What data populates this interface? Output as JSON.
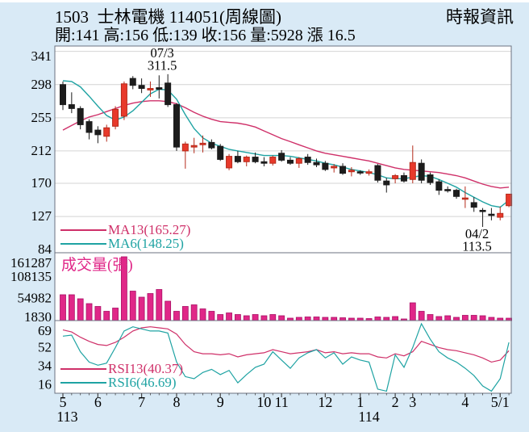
{
  "header": {
    "title": "1503  士林電機 114051(周線圖)",
    "source": "時報資訊",
    "info": "開:141 高:156 低:139 收:156 量:5928 漲 16.5"
  },
  "colors": {
    "background": "#d9eaf6",
    "plot_bg": "#ffffff",
    "up": "#e8392b",
    "up_border": "#b52a1a",
    "down": "#1c1c1c",
    "ma13": "#cf3069",
    "ma6": "#1fa3a3",
    "volume_bar": "#e02788",
    "volume_border": "#aa1166",
    "grid": "#d4d4d4",
    "axis": "#6b7280",
    "tick": "#444444",
    "text": "#000000"
  },
  "main_chart": {
    "y_ticks": [
      341,
      298,
      255,
      212,
      170,
      127,
      84
    ],
    "legend": [
      {
        "label": "MA13(165.27)",
        "color": "#cf3069"
      },
      {
        "label": "MA6(148.25)",
        "color": "#1fa3a3"
      }
    ],
    "annotations": [
      {
        "lines": [
          "07/3",
          "311.5"
        ],
        "i": 12,
        "price": 311.5,
        "position": "above"
      },
      {
        "lines": [
          "04/2",
          "113.5"
        ],
        "i": 48,
        "price": 113.5,
        "position": "below"
      }
    ]
  },
  "volume_chart": {
    "label": "成交量(張)",
    "y_ticks": [
      161287,
      108135,
      54982,
      1830
    ]
  },
  "rsi_chart": {
    "y_ticks": [
      69,
      52,
      34,
      16
    ],
    "legend": [
      {
        "label": "RSI13(40.37)",
        "color": "#cf3069"
      },
      {
        "label": "RSI6(46.69)",
        "color": "#1fa3a3"
      }
    ]
  },
  "chart_data": {
    "type": "candlestick",
    "panels": [
      "price",
      "volume",
      "rsi"
    ],
    "weeks": 52,
    "price_axis_range": [
      84,
      341
    ],
    "volume_axis_range": [
      1830,
      161287
    ],
    "rsi_axis_range": [
      16,
      69
    ],
    "candles": [
      [
        298,
        302,
        265,
        272
      ],
      [
        272,
        288,
        261,
        267
      ],
      [
        267,
        270,
        240,
        246
      ],
      [
        250,
        253,
        227,
        236
      ],
      [
        239,
        244,
        222,
        233
      ],
      [
        231,
        246,
        224,
        242
      ],
      [
        244,
        270,
        240,
        266
      ],
      [
        257,
        302,
        252,
        299
      ],
      [
        306,
        309,
        292,
        297
      ],
      [
        297,
        306,
        287,
        293
      ],
      [
        291,
        302,
        282,
        293
      ],
      [
        294,
        310,
        280,
        292
      ],
      [
        300,
        311.5,
        269,
        272
      ],
      [
        272,
        274,
        212,
        217
      ],
      [
        212,
        224,
        189,
        221
      ],
      [
        217,
        229,
        209,
        219
      ],
      [
        220,
        232,
        210,
        222
      ],
      [
        223,
        227,
        214,
        216
      ],
      [
        218,
        221,
        199,
        201
      ],
      [
        190,
        208,
        187,
        205
      ],
      [
        205,
        212,
        196,
        198
      ],
      [
        198,
        206,
        192,
        204
      ],
      [
        204,
        210,
        196,
        198
      ],
      [
        198,
        204,
        192,
        196
      ],
      [
        196,
        206,
        193,
        204
      ],
      [
        209,
        213,
        198,
        200
      ],
      [
        200,
        204,
        194,
        196
      ],
      [
        196,
        204,
        190,
        202
      ],
      [
        204,
        208,
        194,
        197
      ],
      [
        197,
        202,
        191,
        194
      ],
      [
        196,
        199,
        186,
        188
      ],
      [
        190,
        195,
        184,
        192
      ],
      [
        192,
        196,
        181,
        183
      ],
      [
        185,
        191,
        179,
        187
      ],
      [
        185,
        187,
        181,
        184
      ],
      [
        183,
        188,
        180,
        185
      ],
      [
        193,
        195,
        171,
        174
      ],
      [
        173,
        177,
        158,
        168
      ],
      [
        176,
        182,
        170,
        180
      ],
      [
        180,
        184,
        171,
        173
      ],
      [
        175,
        219,
        170,
        197
      ],
      [
        196,
        201,
        170,
        174
      ],
      [
        181,
        184,
        168,
        171
      ],
      [
        172,
        175,
        155,
        161
      ],
      [
        162,
        166,
        158,
        161
      ],
      [
        161,
        163,
        150,
        153
      ],
      [
        150,
        166,
        138,
        151
      ],
      [
        145,
        152,
        133,
        139
      ],
      [
        135,
        138,
        113.5,
        134
      ],
      [
        130,
        138,
        122,
        129
      ],
      [
        126,
        140,
        122,
        131
      ],
      [
        141,
        156,
        139,
        156
      ]
    ],
    "volumes": [
      64000,
      64000,
      54000,
      42000,
      35000,
      23000,
      31000,
      158000,
      73000,
      58000,
      67000,
      77000,
      48000,
      23000,
      35000,
      39000,
      29000,
      23000,
      15000,
      19000,
      15000,
      12000,
      15000,
      12000,
      15000,
      12000,
      6000,
      8000,
      9000,
      9000,
      8000,
      8000,
      7000,
      6000,
      6000,
      5000,
      9000,
      8000,
      10000,
      4000,
      44000,
      23000,
      15000,
      10000,
      12000,
      8000,
      13000,
      13000,
      12000,
      8000,
      6000,
      5928
    ],
    "ma6": [
      303,
      302,
      295,
      283,
      270,
      258,
      252,
      256,
      264,
      275,
      286,
      292,
      291,
      279,
      259,
      241,
      229,
      222,
      218,
      214,
      212,
      210,
      208,
      206,
      206,
      206,
      205,
      203,
      201,
      199,
      196,
      194,
      191,
      188,
      186,
      184,
      181,
      177,
      176,
      176,
      178,
      180,
      179,
      175,
      170,
      165,
      158,
      152,
      146,
      141,
      139,
      148
    ],
    "ma13": [
      239,
      245,
      251,
      256,
      259,
      263,
      267,
      271,
      274,
      276,
      277,
      277,
      276,
      273,
      268,
      262,
      257,
      253,
      250,
      249,
      248,
      246,
      243,
      238,
      233,
      228,
      224,
      220,
      216,
      212,
      209,
      207,
      205,
      203,
      201,
      199,
      196,
      193,
      190,
      188,
      187,
      186,
      185,
      184,
      182,
      180,
      177,
      173,
      169,
      166,
      164,
      165
    ],
    "rsi6": [
      63,
      64,
      48,
      38,
      35,
      37,
      52,
      68,
      72,
      70,
      68,
      68,
      66,
      38,
      24,
      22,
      28,
      31,
      26,
      30,
      18,
      26,
      33,
      36,
      48,
      40,
      32,
      42,
      47,
      50,
      42,
      47,
      36,
      43,
      40,
      38,
      12,
      10,
      45,
      33,
      52,
      75,
      60,
      48,
      42,
      38,
      32,
      25,
      15,
      10,
      22,
      57
    ],
    "rsi13": [
      69,
      67,
      62,
      58,
      55,
      54,
      57,
      62,
      68,
      71,
      72,
      71,
      70,
      65,
      55,
      48,
      46,
      46,
      45,
      46,
      43,
      45,
      46,
      47,
      50,
      48,
      46,
      47,
      48,
      50,
      47,
      48,
      46,
      47,
      46,
      46,
      43,
      42,
      46,
      44,
      48,
      58,
      55,
      52,
      50,
      49,
      47,
      45,
      42,
      38,
      40,
      49
    ],
    "x_month_ticks": [
      {
        "label": "5",
        "i": 0
      },
      {
        "label": "6",
        "i": 4
      },
      {
        "label": "7",
        "i": 9
      },
      {
        "label": "8",
        "i": 13
      },
      {
        "label": "9",
        "i": 18
      },
      {
        "label": "10",
        "i": 23
      },
      {
        "label": "11",
        "i": 25
      },
      {
        "label": "12",
        "i": 30
      },
      {
        "label": "1",
        "i": 34
      },
      {
        "label": "2",
        "i": 38
      },
      {
        "label": "3",
        "i": 40
      },
      {
        "label": "4",
        "i": 46
      },
      {
        "label": "5/1",
        "i": 50
      }
    ],
    "x_year_ticks": [
      {
        "label": "113",
        "i": 0.5
      },
      {
        "label": "114",
        "i": 35
      }
    ]
  }
}
